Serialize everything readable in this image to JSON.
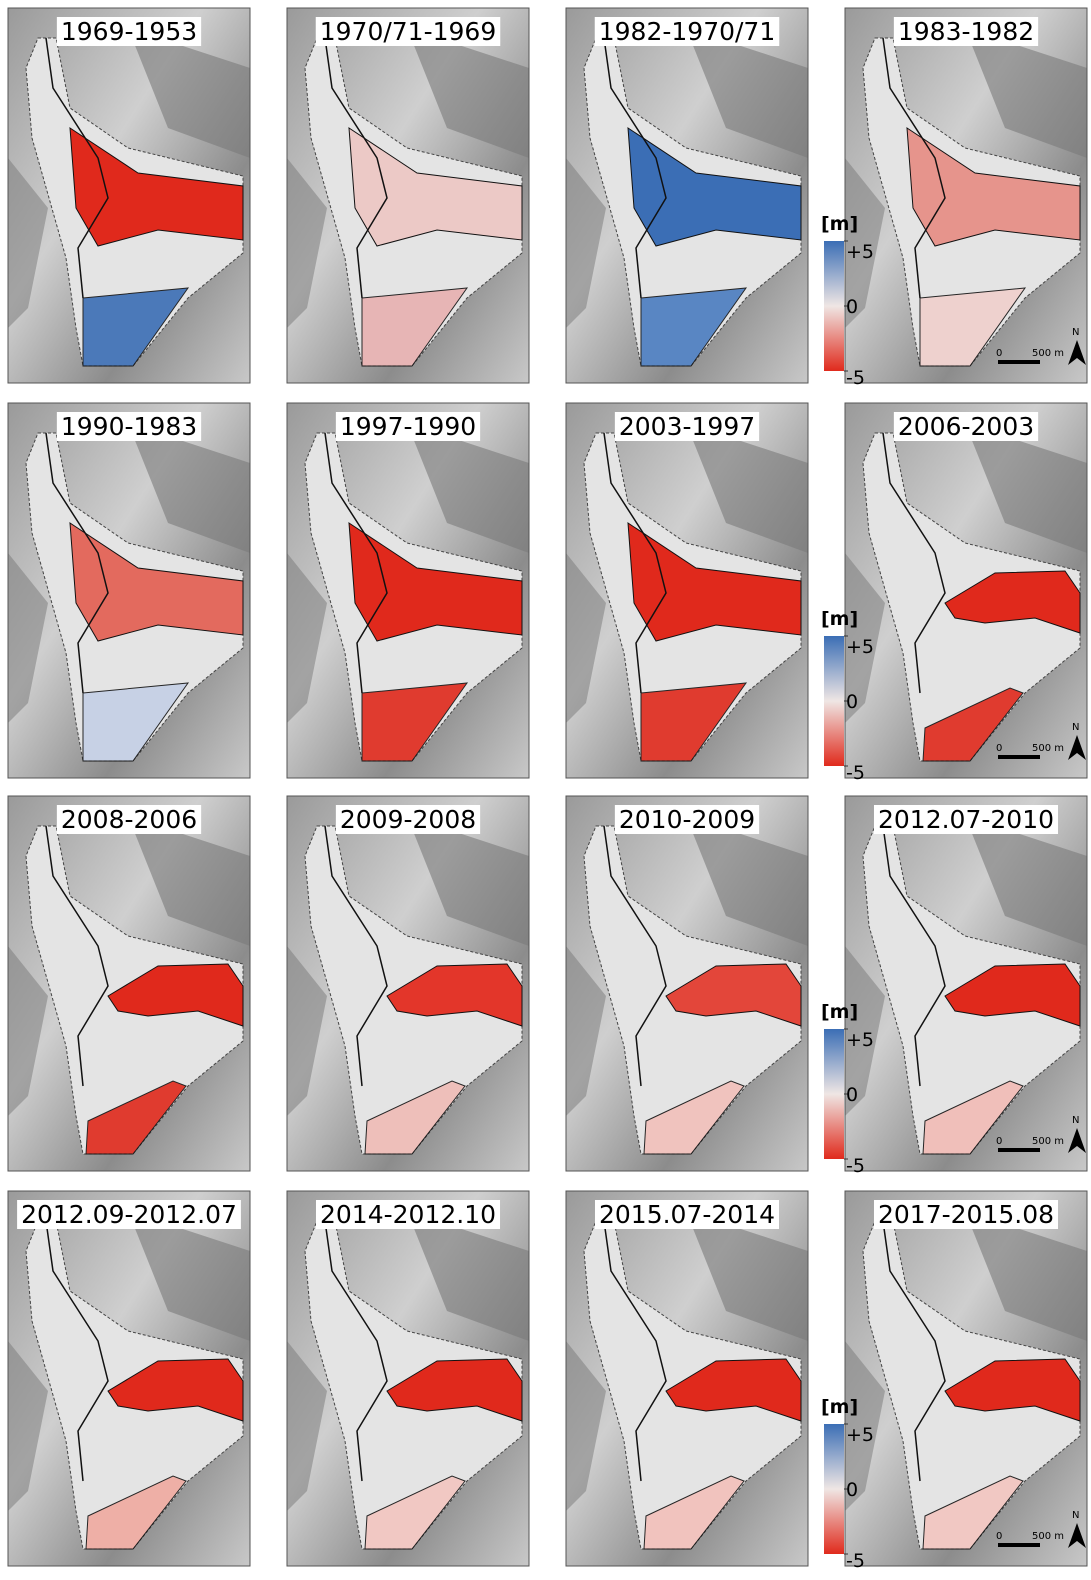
{
  "panels": [
    {
      "title": "1969-1953"
    },
    {
      "title": "1970/71-1969"
    },
    {
      "title": "1982-1970/71"
    },
    {
      "title": "1983-1982"
    },
    {
      "title": "1990-1983"
    },
    {
      "title": "1997-1990"
    },
    {
      "title": "2003-1997"
    },
    {
      "title": "2006-2003"
    },
    {
      "title": "2008-2006"
    },
    {
      "title": "2009-2008"
    },
    {
      "title": "2010-2009"
    },
    {
      "title": "2012.07-2010"
    },
    {
      "title": "2012.09-2012.07"
    },
    {
      "title": "2014-2012.10"
    },
    {
      "title": "2015.07-2014"
    },
    {
      "title": "2017-2015.08"
    }
  ],
  "legend": {
    "label": "[m]",
    "lim": [
      -5,
      5
    ],
    "ticks": [
      {
        "value": 5,
        "label": "+5"
      },
      0,
      -5
    ]
  },
  "scale_bar": {
    "start": "0",
    "end": "500 m",
    "north": "N"
  }
}
